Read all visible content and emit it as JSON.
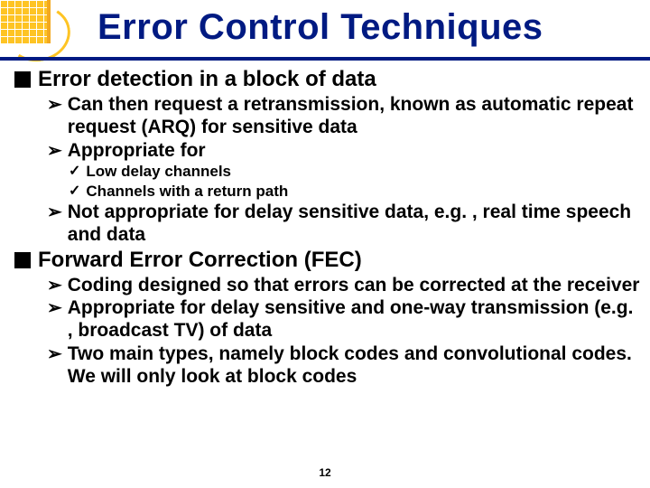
{
  "title": "Error Control Techniques",
  "pageNumber": "12",
  "colors": {
    "titleColor": "#001a82",
    "underlineColor": "#001a82",
    "logoYellow": "#fec424",
    "logoOrange": "#f3a81f",
    "textColor": "#000000",
    "background": "#ffffff"
  },
  "bullets": [
    {
      "level": 1,
      "text": "Error detection in a block of data"
    },
    {
      "level": 2,
      "text": "Can then request a retransmission, known as automatic repeat request (ARQ) for sensitive data"
    },
    {
      "level": 2,
      "text": "Appropriate for"
    },
    {
      "level": 3,
      "text": "Low delay channels"
    },
    {
      "level": 3,
      "text": "Channels with a return path"
    },
    {
      "level": 2,
      "text": "Not appropriate for delay sensitive data, e.g. , real time speech and data"
    },
    {
      "level": 1,
      "text": "Forward Error Correction (FEC)"
    },
    {
      "level": 2,
      "text": "Coding designed so that errors can be corrected at the receiver"
    },
    {
      "level": 2,
      "text": "Appropriate for delay sensitive and one-way transmission (e.g. , broadcast TV) of data"
    },
    {
      "level": 2,
      "text": "Two main types, namely block codes and convolutional codes. We will only look at block codes"
    }
  ]
}
